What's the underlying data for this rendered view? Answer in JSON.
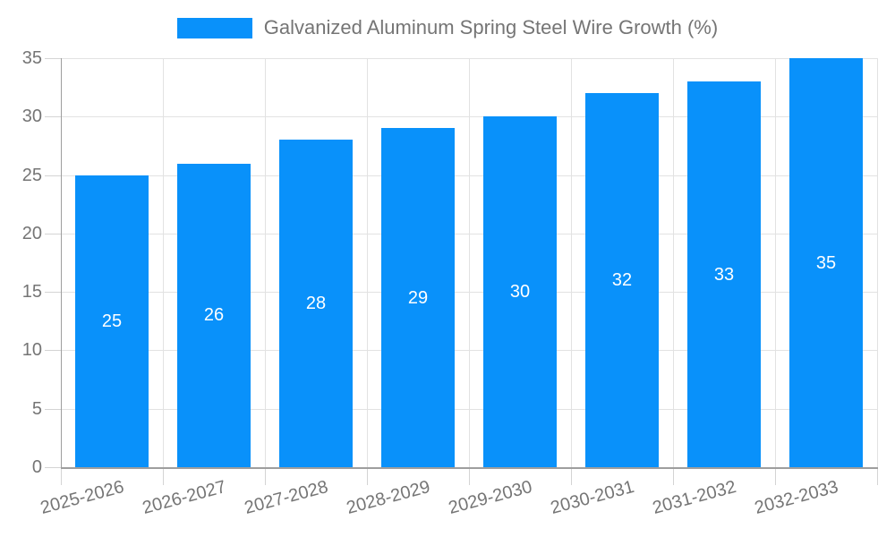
{
  "chart_data": {
    "type": "bar",
    "title": "",
    "categories": [
      "2025-2026",
      "2026-2027",
      "2027-2028",
      "2028-2029",
      "2029-2030",
      "2030-2031",
      "2031-2032",
      "2032-2033"
    ],
    "series": [
      {
        "name": "Galvanized Aluminum Spring Steel Wire Growth (%)",
        "values": [
          25,
          26,
          28,
          29,
          30,
          32,
          33,
          35
        ]
      }
    ],
    "xlabel": "",
    "ylabel": "",
    "ylim": [
      0,
      35
    ],
    "yticks": [
      0,
      5,
      10,
      15,
      20,
      25,
      30,
      35
    ],
    "grid": true,
    "legend_position": "top",
    "bar_color": "#0991fa",
    "bar_value_label_color": "#ffffff",
    "axis_label_color": "#757575",
    "gridline_color": "#e2e2e2",
    "axis_line_color": "#9e9e9e",
    "background_color": "#ffffff"
  }
}
